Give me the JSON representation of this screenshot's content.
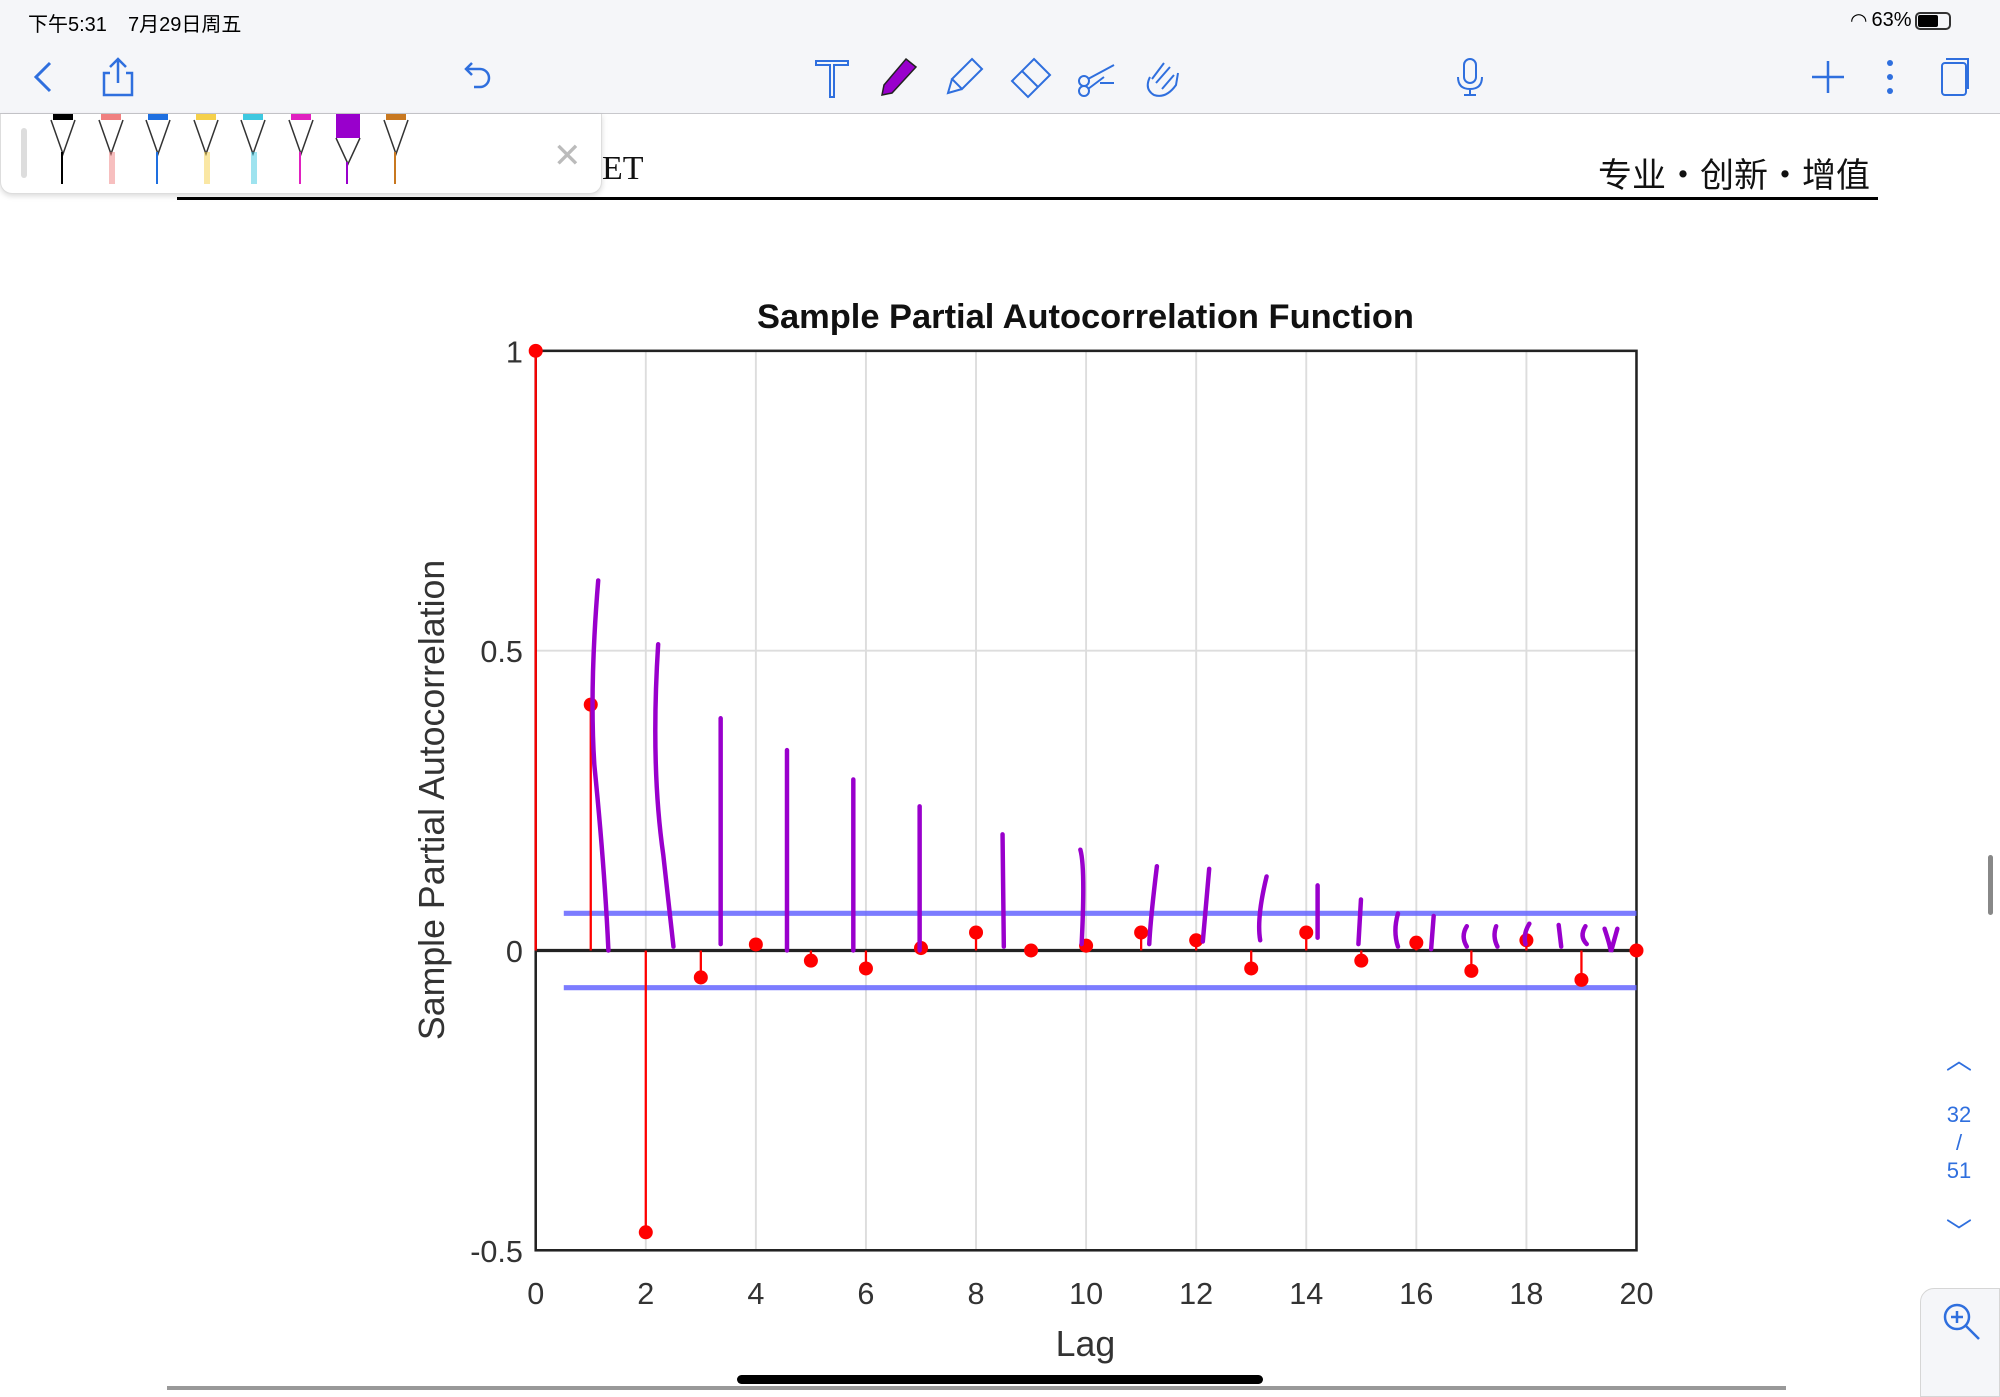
{
  "status_bar": {
    "time": "下午5:31",
    "date": "7月29日周五",
    "battery": "63%"
  },
  "toolbar": {
    "icons": [
      "back-icon",
      "share-icon",
      "undo-icon",
      "text-tool-icon",
      "pen-tool-icon",
      "highlighter-icon",
      "eraser-icon",
      "lasso-scissors-icon",
      "touch-hand-icon",
      "microphone-icon",
      "add-icon",
      "more-icon",
      "pages-icon"
    ],
    "active_color": "#9900cc"
  },
  "pen_tray": {
    "colors": [
      "#000000",
      "#f08080",
      "#1e6fe0",
      "#f5d04a",
      "#3ec8e0",
      "#e020c0",
      "#9900cc",
      "#c87820"
    ],
    "selected": 6
  },
  "document": {
    "header_left": "ET",
    "header_right": "专业・创新・增值"
  },
  "page_nav": {
    "current": "32",
    "separator": "/",
    "total": "51"
  },
  "chart_data": {
    "type": "stem",
    "title": "Sample Partial Autocorrelation Function",
    "xlabel": "Lag",
    "ylabel": "Sample Partial Autocorrelation",
    "xlim": [
      0,
      20
    ],
    "ylim": [
      -0.5,
      1
    ],
    "xticks": [
      "0",
      "2",
      "4",
      "6",
      "8",
      "10",
      "12",
      "14",
      "16",
      "18",
      "20"
    ],
    "yticks": [
      "-0.5",
      "0",
      "0.5",
      "1"
    ],
    "grid": true,
    "x": [
      0,
      1,
      2,
      3,
      4,
      5,
      6,
      7,
      8,
      9,
      10,
      11,
      12,
      13,
      14,
      15,
      16,
      17,
      18,
      19,
      20
    ],
    "values": [
      1,
      0.41,
      -0.47,
      -0.045,
      0.01,
      -0.017,
      -0.03,
      0.004,
      0.03,
      0,
      0.008,
      0.03,
      0.017,
      -0.03,
      0.03,
      -0.017,
      0.013,
      -0.034,
      0.017,
      -0.049,
      0
    ],
    "confidence_bounds": [
      -0.062,
      0.062
    ],
    "colors": {
      "stem": "#ff0000",
      "bounds": "#6666ff",
      "annotation": "#9900cc"
    }
  }
}
